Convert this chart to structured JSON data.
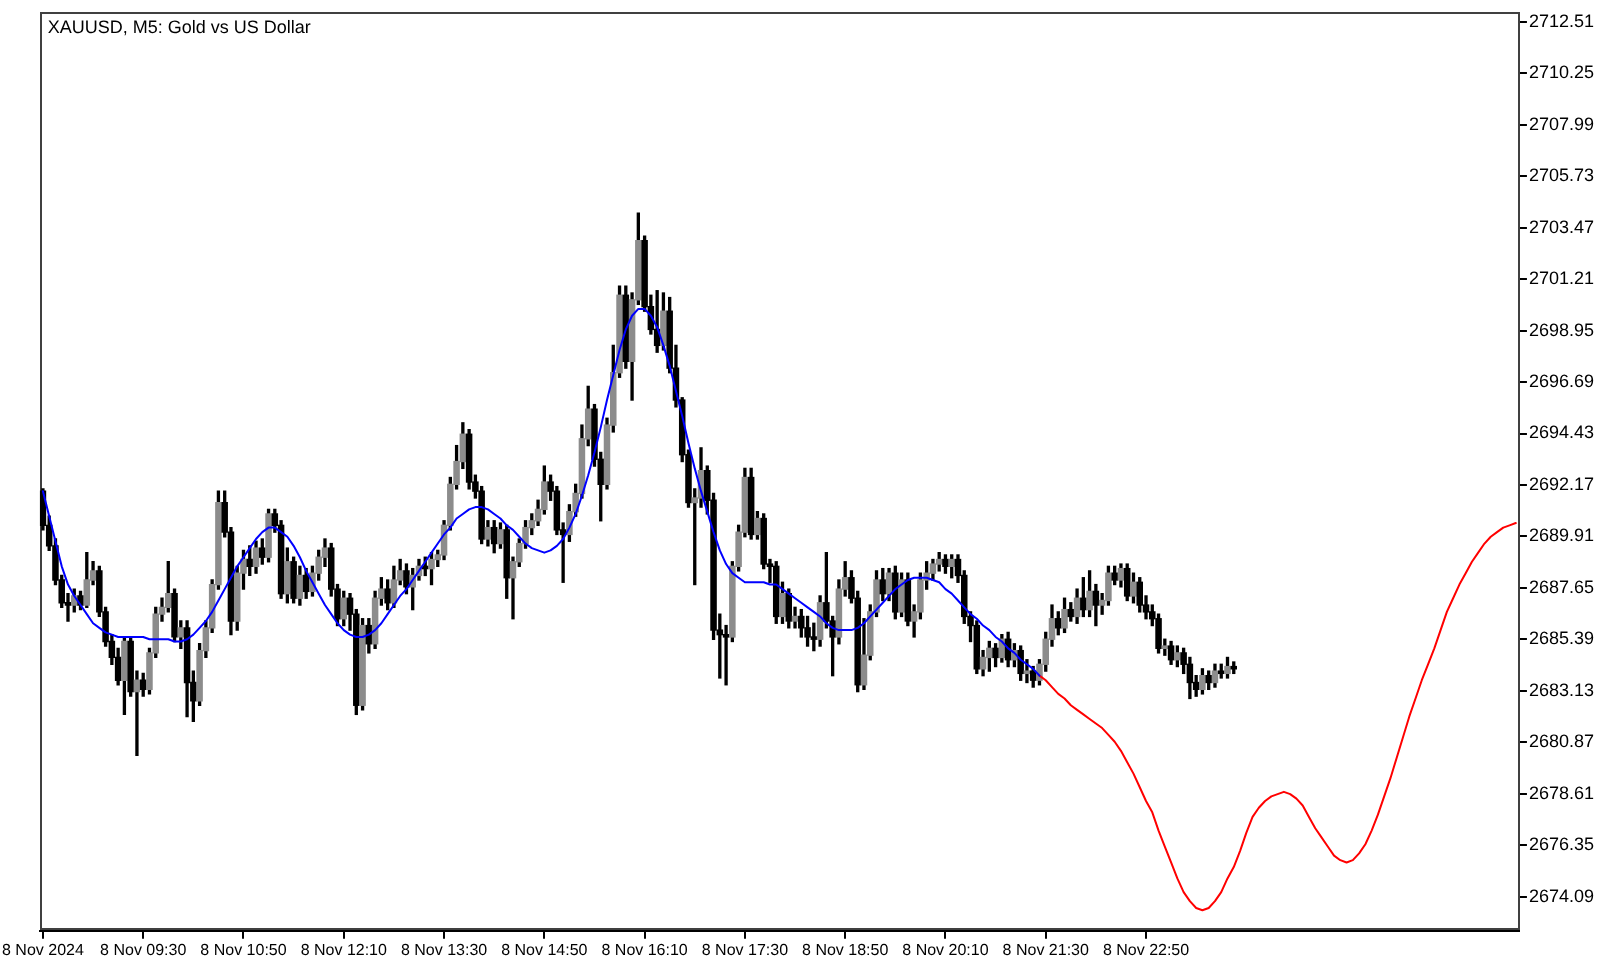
{
  "chart_data": {
    "type": "candlestick",
    "title": "XAUUSD, M5: Gold vs US Dollar",
    "color": "#000000",
    "marker": "none",
    "categories": [
      "8 Nov 2024",
      null,
      null,
      null,
      null,
      null,
      null,
      null,
      null,
      null,
      null,
      null,
      null,
      null,
      null,
      null,
      "8 Nov 09:30",
      null,
      null,
      null,
      null,
      null,
      null,
      null,
      null,
      null,
      null,
      null,
      null,
      null,
      null,
      null,
      "8 Nov 10:50",
      null,
      null,
      null,
      null,
      null,
      null,
      null,
      null,
      null,
      null,
      null,
      null,
      null,
      null,
      null,
      "8 Nov 12:10",
      null,
      null,
      null,
      null,
      null,
      null,
      null,
      null,
      null,
      null,
      null,
      null,
      null,
      null,
      null,
      "8 Nov 13:30",
      null,
      null,
      null,
      null,
      null,
      null,
      null,
      null,
      null,
      null,
      null,
      null,
      null,
      null,
      null,
      "8 Nov 14:50",
      null,
      null,
      null,
      null,
      null,
      null,
      null,
      null,
      null,
      null,
      null,
      null,
      null,
      null,
      null,
      "8 Nov 16:10",
      null,
      null,
      null,
      null,
      null,
      null,
      null,
      null,
      null,
      null,
      null,
      null,
      null,
      null,
      null,
      "8 Nov 17:30",
      null,
      null,
      null,
      null,
      null,
      null,
      null,
      null,
      null,
      null,
      null,
      null,
      null,
      null,
      null,
      "8 Nov 18:50",
      null,
      null,
      null,
      null,
      null,
      null,
      null,
      null,
      null,
      null,
      null,
      null,
      null,
      null,
      null,
      "8 Nov 20:10",
      null,
      null,
      null,
      null,
      null,
      null,
      null,
      null,
      null,
      null,
      null,
      null,
      null,
      null,
      null,
      "8 Nov 21:30",
      null,
      null,
      null,
      null,
      null,
      null,
      null,
      null,
      null,
      null,
      null,
      null,
      null,
      null,
      null,
      "8 Nov 22:50",
      null,
      null,
      null,
      null,
      null,
      null,
      null,
      null,
      null,
      null,
      null,
      null,
      null,
      null,
      null,
      null,
      null,
      null,
      null,
      null,
      null,
      null,
      null,
      null,
      null,
      null,
      null,
      null,
      null,
      null,
      null,
      null,
      null,
      null,
      null,
      null,
      null,
      null,
      null,
      null,
      null,
      null,
      null,
      null,
      null,
      null,
      null,
      null,
      null,
      null,
      null,
      null,
      null,
      null,
      null,
      null,
      null,
      null,
      null
    ],
    "ohlc": [
      [
        2691.9,
        2692.0,
        2690.2,
        2690.4
      ],
      [
        2690.4,
        2690.8,
        2689.3,
        2689.5
      ],
      [
        2689.5,
        2689.8,
        2687.8,
        2688.0
      ],
      [
        2688.0,
        2688.2,
        2686.8,
        2687.0
      ],
      [
        2687.0,
        2687.4,
        2686.2,
        2686.9
      ],
      [
        2686.9,
        2687.6,
        2686.6,
        2687.3
      ],
      [
        2687.3,
        2687.5,
        2686.7,
        2686.9
      ],
      [
        2686.9,
        2689.2,
        2686.8,
        2688.0
      ],
      [
        2688.0,
        2688.8,
        2687.8,
        2688.4
      ],
      [
        2688.4,
        2688.6,
        2686.4,
        2686.6
      ],
      [
        2686.6,
        2686.8,
        2685.1,
        2685.3
      ],
      [
        2685.3,
        2685.6,
        2684.3,
        2684.6
      ],
      [
        2684.6,
        2685.0,
        2683.4,
        2683.6
      ],
      [
        2683.6,
        2685.5,
        2682.1,
        2685.3
      ],
      [
        2685.3,
        2685.5,
        2682.9,
        2683.1
      ],
      [
        2683.1,
        2684.0,
        2680.3,
        2683.6
      ],
      [
        2683.6,
        2683.9,
        2682.9,
        2683.2
      ],
      [
        2683.2,
        2685.0,
        2683.0,
        2684.8
      ],
      [
        2684.8,
        2686.8,
        2684.6,
        2686.5
      ],
      [
        2686.5,
        2687.2,
        2686.2,
        2686.8
      ],
      [
        2686.8,
        2688.8,
        2686.6,
        2687.4
      ],
      [
        2687.4,
        2687.6,
        2685.3,
        2685.5
      ],
      [
        2685.5,
        2686.2,
        2685.0,
        2685.9
      ],
      [
        2685.9,
        2686.2,
        2682.0,
        2683.5
      ],
      [
        2683.5,
        2684.0,
        2681.8,
        2682.7
      ],
      [
        2682.7,
        2685.2,
        2682.5,
        2684.9
      ],
      [
        2684.9,
        2686.2,
        2684.6,
        2685.9
      ],
      [
        2685.9,
        2688.0,
        2685.7,
        2687.8
      ],
      [
        2687.8,
        2691.9,
        2687.6,
        2691.4
      ],
      [
        2691.4,
        2691.9,
        2689.9,
        2690.1
      ],
      [
        2690.1,
        2690.3,
        2685.6,
        2686.2
      ],
      [
        2686.2,
        2688.6,
        2685.8,
        2688.3
      ],
      [
        2688.3,
        2689.3,
        2687.6,
        2688.9
      ],
      [
        2688.9,
        2689.5,
        2688.2,
        2688.6
      ],
      [
        2688.6,
        2689.7,
        2688.3,
        2689.4
      ],
      [
        2689.4,
        2689.8,
        2688.7,
        2689.0
      ],
      [
        2689.0,
        2691.1,
        2688.8,
        2690.9
      ],
      [
        2690.9,
        2691.1,
        2690.1,
        2690.4
      ],
      [
        2690.4,
        2690.6,
        2687.2,
        2687.4
      ],
      [
        2687.4,
        2689.4,
        2687.0,
        2688.8
      ],
      [
        2688.8,
        2689.0,
        2687.0,
        2687.2
      ],
      [
        2687.2,
        2688.6,
        2686.9,
        2688.2
      ],
      [
        2688.2,
        2688.5,
        2687.2,
        2687.5
      ],
      [
        2687.5,
        2688.6,
        2687.3,
        2688.3
      ],
      [
        2688.3,
        2689.3,
        2688.0,
        2689.0
      ],
      [
        2689.0,
        2689.8,
        2688.6,
        2689.4
      ],
      [
        2689.4,
        2689.6,
        2687.3,
        2687.6
      ],
      [
        2687.6,
        2687.8,
        2686.0,
        2686.3
      ],
      [
        2686.3,
        2687.5,
        2686.0,
        2687.2
      ],
      [
        2687.2,
        2687.4,
        2685.8,
        2686.5
      ],
      [
        2686.5,
        2686.7,
        2682.1,
        2682.5
      ],
      [
        2682.5,
        2686.3,
        2682.3,
        2686.0
      ],
      [
        2686.0,
        2686.3,
        2684.8,
        2685.2
      ],
      [
        2685.2,
        2687.5,
        2685.0,
        2687.2
      ],
      [
        2687.2,
        2688.1,
        2686.9,
        2687.6
      ],
      [
        2687.6,
        2688.0,
        2686.7,
        2687.0
      ],
      [
        2687.0,
        2688.6,
        2686.8,
        2688.0
      ],
      [
        2688.0,
        2688.9,
        2687.8,
        2688.4
      ],
      [
        2688.4,
        2688.7,
        2687.4,
        2687.7
      ],
      [
        2687.7,
        2688.5,
        2686.7,
        2688.2
      ],
      [
        2688.2,
        2688.9,
        2688.0,
        2688.6
      ],
      [
        2688.6,
        2689.0,
        2688.2,
        2688.5
      ],
      [
        2688.5,
        2689.2,
        2687.8,
        2688.9
      ],
      [
        2688.9,
        2689.3,
        2688.6,
        2689.1
      ],
      [
        2689.1,
        2690.6,
        2688.9,
        2690.4
      ],
      [
        2690.4,
        2692.5,
        2690.2,
        2692.2
      ],
      [
        2692.2,
        2693.9,
        2692.0,
        2693.2
      ],
      [
        2693.2,
        2694.9,
        2692.9,
        2694.4
      ],
      [
        2694.4,
        2694.6,
        2692.0,
        2692.3
      ],
      [
        2692.3,
        2692.6,
        2691.6,
        2691.9
      ],
      [
        2691.9,
        2692.1,
        2689.6,
        2689.8
      ],
      [
        2689.8,
        2690.6,
        2689.5,
        2690.3
      ],
      [
        2690.3,
        2690.6,
        2689.2,
        2689.6
      ],
      [
        2689.6,
        2690.5,
        2689.4,
        2690.2
      ],
      [
        2690.2,
        2690.4,
        2687.2,
        2688.1
      ],
      [
        2688.1,
        2689.0,
        2686.3,
        2688.8
      ],
      [
        2688.8,
        2689.8,
        2688.6,
        2689.6
      ],
      [
        2689.6,
        2690.6,
        2689.4,
        2690.3
      ],
      [
        2690.3,
        2690.9,
        2690.0,
        2690.6
      ],
      [
        2690.6,
        2691.5,
        2690.4,
        2691.1
      ],
      [
        2691.1,
        2693.0,
        2690.9,
        2692.3
      ],
      [
        2692.3,
        2692.6,
        2691.5,
        2691.9
      ],
      [
        2691.9,
        2692.1,
        2690.0,
        2690.2
      ],
      [
        2690.2,
        2690.5,
        2687.9,
        2690.0
      ],
      [
        2690.0,
        2691.3,
        2689.7,
        2691.0
      ],
      [
        2691.0,
        2692.2,
        2690.8,
        2691.8
      ],
      [
        2691.8,
        2694.8,
        2691.6,
        2694.2
      ],
      [
        2694.2,
        2696.5,
        2693.9,
        2695.5
      ],
      [
        2695.5,
        2695.7,
        2693.0,
        2693.3
      ],
      [
        2693.3,
        2693.6,
        2690.6,
        2692.2
      ],
      [
        2692.2,
        2695.1,
        2692.0,
        2694.8
      ],
      [
        2694.8,
        2698.3,
        2694.5,
        2697.1
      ],
      [
        2697.1,
        2700.9,
        2696.9,
        2700.5
      ],
      [
        2700.5,
        2700.9,
        2697.3,
        2697.6
      ],
      [
        2697.6,
        2700.6,
        2695.9,
        2700.3
      ],
      [
        2700.3,
        2704.1,
        2700.1,
        2702.9
      ],
      [
        2702.9,
        2703.1,
        2699.8,
        2700.0
      ],
      [
        2700.0,
        2700.5,
        2698.8,
        2699.0
      ],
      [
        2699.0,
        2700.7,
        2698.0,
        2698.3
      ],
      [
        2698.3,
        2700.6,
        2698.1,
        2699.8
      ],
      [
        2699.8,
        2700.4,
        2697.1,
        2697.3
      ],
      [
        2697.3,
        2698.3,
        2695.6,
        2695.9
      ],
      [
        2695.9,
        2696.0,
        2693.2,
        2693.5
      ],
      [
        2693.5,
        2693.7,
        2691.2,
        2691.4
      ],
      [
        2691.4,
        2692.0,
        2687.8,
        2691.6
      ],
      [
        2691.6,
        2693.8,
        2691.2,
        2692.8
      ],
      [
        2692.8,
        2693.0,
        2690.9,
        2691.5
      ],
      [
        2691.5,
        2691.8,
        2685.4,
        2685.8
      ],
      [
        2685.8,
        2686.5,
        2683.7,
        2685.6
      ],
      [
        2685.6,
        2686.0,
        2683.4,
        2685.5
      ],
      [
        2685.5,
        2688.8,
        2685.3,
        2688.6
      ],
      [
        2688.6,
        2690.4,
        2688.4,
        2690.1
      ],
      [
        2690.1,
        2692.9,
        2689.9,
        2692.5
      ],
      [
        2692.5,
        2692.9,
        2689.8,
        2690.0
      ],
      [
        2690.0,
        2691.0,
        2689.8,
        2690.7
      ],
      [
        2690.7,
        2690.9,
        2688.5,
        2688.7
      ],
      [
        2688.7,
        2688.9,
        2687.9,
        2688.6
      ],
      [
        2688.6,
        2688.8,
        2686.1,
        2686.4
      ],
      [
        2686.4,
        2687.9,
        2686.1,
        2687.4
      ],
      [
        2687.4,
        2687.6,
        2685.9,
        2686.2
      ],
      [
        2686.2,
        2686.8,
        2685.9,
        2686.4
      ],
      [
        2686.4,
        2686.7,
        2685.5,
        2685.9
      ],
      [
        2685.9,
        2686.4,
        2685.1,
        2685.5
      ],
      [
        2685.5,
        2686.1,
        2684.9,
        2685.4
      ],
      [
        2685.4,
        2687.3,
        2685.1,
        2687.0
      ],
      [
        2687.0,
        2689.2,
        2685.9,
        2686.2
      ],
      [
        2686.2,
        2686.4,
        2683.8,
        2685.5
      ],
      [
        2685.5,
        2688.0,
        2685.2,
        2687.6
      ],
      [
        2687.6,
        2688.8,
        2687.3,
        2688.1
      ],
      [
        2688.1,
        2688.4,
        2687.0,
        2687.2
      ],
      [
        2687.2,
        2687.5,
        2683.1,
        2683.4
      ],
      [
        2683.4,
        2686.3,
        2683.2,
        2684.7
      ],
      [
        2684.7,
        2686.9,
        2684.5,
        2686.6
      ],
      [
        2686.6,
        2688.4,
        2686.4,
        2688.0
      ],
      [
        2688.0,
        2688.5,
        2687.1,
        2687.4
      ],
      [
        2687.4,
        2688.5,
        2687.1,
        2688.3
      ],
      [
        2688.3,
        2688.6,
        2686.3,
        2686.6
      ],
      [
        2686.6,
        2688.3,
        2686.4,
        2688.0
      ],
      [
        2688.0,
        2688.3,
        2686.0,
        2686.2
      ],
      [
        2686.2,
        2686.9,
        2685.5,
        2686.6
      ],
      [
        2686.6,
        2688.3,
        2686.3,
        2688.0
      ],
      [
        2688.0,
        2688.8,
        2687.6,
        2688.3
      ],
      [
        2688.3,
        2688.9,
        2688.0,
        2688.7
      ],
      [
        2688.7,
        2689.2,
        2688.4,
        2688.9
      ],
      [
        2688.9,
        2689.1,
        2688.3,
        2688.6
      ],
      [
        2688.6,
        2689.1,
        2688.1,
        2688.9
      ],
      [
        2688.9,
        2689.1,
        2687.9,
        2688.2
      ],
      [
        2688.2,
        2688.4,
        2686.1,
        2686.4
      ],
      [
        2686.4,
        2686.6,
        2685.3,
        2686.0
      ],
      [
        2686.0,
        2686.2,
        2683.9,
        2684.1
      ],
      [
        2684.1,
        2684.9,
        2683.8,
        2684.6
      ],
      [
        2684.6,
        2685.3,
        2684.0,
        2685.0
      ],
      [
        2685.0,
        2685.2,
        2684.2,
        2684.6
      ],
      [
        2684.6,
        2685.6,
        2684.4,
        2685.4
      ],
      [
        2685.4,
        2685.7,
        2684.2,
        2684.5
      ],
      [
        2684.5,
        2685.2,
        2684.2,
        2684.9
      ],
      [
        2684.9,
        2685.1,
        2683.6,
        2683.9
      ],
      [
        2683.9,
        2684.5,
        2683.5,
        2684.0
      ],
      [
        2684.0,
        2684.2,
        2683.3,
        2683.6
      ],
      [
        2683.6,
        2684.5,
        2683.4,
        2684.3
      ],
      [
        2684.3,
        2685.7,
        2684.0,
        2685.4
      ],
      [
        2685.4,
        2686.9,
        2685.1,
        2686.3
      ],
      [
        2686.3,
        2686.6,
        2685.6,
        2685.9
      ],
      [
        2685.9,
        2687.2,
        2685.7,
        2686.7
      ],
      [
        2686.7,
        2687.0,
        2686.2,
        2686.4
      ],
      [
        2686.4,
        2687.6,
        2686.1,
        2687.2
      ],
      [
        2687.2,
        2688.1,
        2686.4,
        2686.7
      ],
      [
        2686.7,
        2688.4,
        2686.4,
        2687.5
      ],
      [
        2687.5,
        2687.8,
        2686.0,
        2686.9
      ],
      [
        2686.9,
        2687.4,
        2686.5,
        2687.1
      ],
      [
        2687.1,
        2688.6,
        2686.9,
        2688.3
      ],
      [
        2688.3,
        2688.6,
        2687.8,
        2688.0
      ],
      [
        2688.0,
        2688.7,
        2687.7,
        2688.5
      ],
      [
        2688.5,
        2688.7,
        2687.1,
        2687.3
      ],
      [
        2687.3,
        2688.3,
        2687.0,
        2687.9
      ],
      [
        2687.9,
        2688.1,
        2686.6,
        2686.9
      ],
      [
        2686.9,
        2687.3,
        2686.3,
        2686.6
      ],
      [
        2686.6,
        2686.9,
        2686.0,
        2686.3
      ],
      [
        2686.3,
        2686.5,
        2684.8,
        2685.0
      ],
      [
        2685.0,
        2685.4,
        2684.7,
        2685.1
      ],
      [
        2685.1,
        2685.3,
        2684.3,
        2684.5
      ],
      [
        2684.5,
        2685.1,
        2684.2,
        2684.8
      ],
      [
        2684.8,
        2685.0,
        2683.9,
        2684.3
      ],
      [
        2684.3,
        2684.6,
        2682.8,
        2683.5
      ],
      [
        2683.5,
        2683.8,
        2682.9,
        2683.2
      ],
      [
        2683.2,
        2684.1,
        2683.0,
        2683.8
      ],
      [
        2683.8,
        2684.0,
        2683.2,
        2683.5
      ],
      [
        2683.5,
        2684.3,
        2683.3,
        2684.0
      ],
      [
        2684.0,
        2684.3,
        2683.7,
        2683.9
      ],
      [
        2683.9,
        2684.6,
        2683.7,
        2684.2
      ],
      [
        2684.2,
        2684.4,
        2683.9,
        2684.1
      ],
      null,
      null,
      null,
      null,
      null,
      null,
      null,
      null,
      null,
      null,
      null,
      null,
      null,
      null,
      null,
      null,
      null,
      null,
      null,
      null,
      null,
      null,
      null,
      null,
      null,
      null,
      null,
      null,
      null,
      null,
      null,
      null,
      null,
      null,
      null,
      null,
      null,
      null,
      null,
      null,
      null,
      null,
      null,
      null,
      null
    ],
    "colors": [
      "#000000",
      "#000000",
      "#000000",
      "#000000",
      "#000000",
      "#8c8c8c",
      "#000000",
      "#8c8c8c",
      "#8c8c8c",
      "#000000",
      "#000000",
      "#000000",
      "#000000",
      "#8c8c8c",
      "#000000",
      "#8c8c8c",
      "#000000",
      "#8c8c8c",
      "#8c8c8c",
      "#8c8c8c",
      "#8c8c8c",
      "#000000",
      "#8c8c8c",
      "#000000",
      "#000000",
      "#8c8c8c",
      "#8c8c8c",
      "#8c8c8c",
      "#8c8c8c",
      "#000000",
      "#000000",
      "#8c8c8c",
      "#8c8c8c",
      "#000000",
      "#8c8c8c",
      "#000000",
      "#8c8c8c",
      "#000000",
      "#000000",
      "#8c8c8c",
      "#000000",
      "#8c8c8c",
      "#000000",
      "#8c8c8c",
      "#8c8c8c",
      "#8c8c8c",
      "#000000",
      "#000000",
      "#8c8c8c",
      "#000000",
      "#000000",
      "#8c8c8c",
      "#000000",
      "#8c8c8c",
      "#8c8c8c",
      "#000000",
      "#8c8c8c",
      "#8c8c8c",
      "#000000",
      "#8c8c8c",
      "#8c8c8c",
      "#000000",
      "#8c8c8c",
      "#8c8c8c",
      "#8c8c8c",
      "#8c8c8c",
      "#8c8c8c",
      "#8c8c8c",
      "#000000",
      "#000000",
      "#000000",
      "#8c8c8c",
      "#000000",
      "#8c8c8c",
      "#000000",
      "#8c8c8c",
      "#8c8c8c",
      "#8c8c8c",
      "#8c8c8c",
      "#8c8c8c",
      "#8c8c8c",
      "#000000",
      "#000000",
      "#000000",
      "#8c8c8c",
      "#8c8c8c",
      "#8c8c8c",
      "#8c8c8c",
      "#000000",
      "#000000",
      "#8c8c8c",
      "#8c8c8c",
      "#8c8c8c",
      "#000000",
      "#8c8c8c",
      "#8c8c8c",
      "#000000",
      "#000000",
      "#000000",
      "#8c8c8c",
      "#000000",
      "#000000",
      "#000000",
      "#000000",
      "#8c8c8c",
      "#8c8c8c",
      "#000000",
      "#000000",
      "#000000",
      "#000000",
      "#8c8c8c",
      "#8c8c8c",
      "#8c8c8c",
      "#000000",
      "#8c8c8c",
      "#000000",
      "#000000",
      "#000000",
      "#8c8c8c",
      "#000000",
      "#8c8c8c",
      "#000000",
      "#000000",
      "#000000",
      "#8c8c8c",
      "#000000",
      "#000000",
      "#8c8c8c",
      "#8c8c8c",
      "#000000",
      "#000000",
      "#8c8c8c",
      "#8c8c8c",
      "#8c8c8c",
      "#000000",
      "#8c8c8c",
      "#000000",
      "#8c8c8c",
      "#000000",
      "#8c8c8c",
      "#8c8c8c",
      "#8c8c8c",
      "#8c8c8c",
      "#8c8c8c",
      "#000000",
      "#8c8c8c",
      "#000000",
      "#000000",
      "#000000",
      "#000000",
      "#8c8c8c",
      "#8c8c8c",
      "#000000",
      "#8c8c8c",
      "#000000",
      "#8c8c8c",
      "#000000",
      "#8c8c8c",
      "#000000",
      "#8c8c8c",
      "#8c8c8c",
      "#8c8c8c",
      "#000000",
      "#8c8c8c",
      "#000000",
      "#8c8c8c",
      "#000000",
      "#8c8c8c",
      "#000000",
      "#8c8c8c",
      "#8c8c8c",
      "#000000",
      "#8c8c8c",
      "#000000",
      "#8c8c8c",
      "#000000",
      "#000000",
      "#000000",
      "#000000",
      "#8c8c8c",
      "#000000",
      "#8c8c8c",
      "#000000",
      "#000000",
      "#000000",
      "#8c8c8c",
      "#000000",
      "#8c8c8c",
      "#000000",
      "#8c8c8c",
      "#000000",
      null,
      null,
      null,
      null,
      null,
      null,
      null,
      null,
      null,
      null,
      null,
      null,
      null,
      null,
      null,
      null,
      null,
      null,
      null,
      null,
      null,
      null,
      null,
      null,
      null,
      null,
      null,
      null,
      null,
      null,
      null,
      null,
      null,
      null,
      null,
      null,
      null,
      null,
      null,
      null,
      null,
      null,
      null,
      null,
      null
    ],
    "series": [
      {
        "type": "line",
        "color": "#0000ff",
        "values": [
          2691.9,
          2690.8,
          2689.7,
          2688.6,
          2687.8,
          2687.3,
          2686.9,
          2686.5,
          2686.1,
          2685.9,
          2685.7,
          2685.6,
          2685.5,
          2685.5,
          2685.5,
          2685.5,
          2685.5,
          2685.4,
          2685.4,
          2685.4,
          2685.4,
          2685.3,
          2685.3,
          2685.4,
          2685.6,
          2685.9,
          2686.2,
          2686.6,
          2687.1,
          2687.6,
          2688.1,
          2688.6,
          2689.0,
          2689.4,
          2689.8,
          2690.1,
          2690.3,
          2690.3,
          2690.1,
          2689.9,
          2689.5,
          2689.0,
          2688.4,
          2687.9,
          2687.4,
          2686.9,
          2686.5,
          2686.1,
          2685.8,
          2685.6,
          2685.5,
          2685.5,
          2685.6,
          2685.8,
          2686.1,
          2686.5,
          2686.9,
          2687.3,
          2687.6,
          2688.0,
          2688.4,
          2688.8,
          2689.2,
          2689.6,
          2690.0,
          2690.3,
          2690.7,
          2690.9,
          2691.1,
          2691.2,
          2691.2,
          2691.1,
          2690.9,
          2690.7,
          2690.4,
          2690.2,
          2689.9,
          2689.6,
          2689.4,
          2689.3,
          2689.2,
          2689.3,
          2689.5,
          2689.8,
          2690.3,
          2690.9,
          2691.7,
          2692.6,
          2693.6,
          2694.7,
          2695.9,
          2697.0,
          2698.1,
          2699.0,
          2699.6,
          2699.9,
          2699.9,
          2699.6,
          2699.1,
          2698.3,
          2697.4,
          2696.3,
          2695.2,
          2694.0,
          2692.9,
          2691.9,
          2691.0,
          2690.1,
          2689.3,
          2688.7,
          2688.3,
          2688.1,
          2687.9,
          2687.9,
          2687.9,
          2687.9,
          2687.8,
          2687.8,
          2687.6,
          2687.4,
          2687.2,
          2687.0,
          2686.8,
          2686.6,
          2686.4,
          2686.1,
          2685.9,
          2685.8,
          2685.8,
          2685.8,
          2685.9,
          2686.1,
          2686.4,
          2686.7,
          2687.0,
          2687.3,
          2687.6,
          2687.8,
          2688.0,
          2688.1,
          2688.1,
          2688.1,
          2688.0,
          2687.9,
          2687.6,
          2687.4,
          2687.1,
          2686.8,
          2686.5,
          2686.3,
          2686.0,
          2685.8,
          2685.5,
          2685.3,
          2685.0,
          2684.8,
          2684.5,
          2684.3,
          2684.1,
          2683.8,
          null,
          null,
          null,
          null,
          null,
          null,
          null,
          null,
          null,
          null,
          null,
          null,
          null,
          null,
          null,
          null,
          null,
          null,
          null,
          null,
          null,
          null,
          null,
          null,
          null,
          null,
          null,
          null,
          null,
          null,
          null,
          null,
          null,
          null,
          null,
          null,
          null,
          null,
          null,
          null,
          null,
          null,
          null,
          null,
          null,
          null,
          null,
          null,
          null,
          null,
          null,
          null,
          null,
          null,
          null,
          null,
          null,
          null,
          null,
          null,
          null,
          null,
          null,
          null,
          null,
          null,
          null,
          null,
          null,
          null,
          null,
          null,
          null,
          null,
          null,
          null
        ]
      },
      {
        "type": "line",
        "color": "#ff0000",
        "values": [
          null,
          null,
          null,
          null,
          null,
          null,
          null,
          null,
          null,
          null,
          null,
          null,
          null,
          null,
          null,
          null,
          null,
          null,
          null,
          null,
          null,
          null,
          null,
          null,
          null,
          null,
          null,
          null,
          null,
          null,
          null,
          null,
          null,
          null,
          null,
          null,
          null,
          null,
          null,
          null,
          null,
          null,
          null,
          null,
          null,
          null,
          null,
          null,
          null,
          null,
          null,
          null,
          null,
          null,
          null,
          null,
          null,
          null,
          null,
          null,
          null,
          null,
          null,
          null,
          null,
          null,
          null,
          null,
          null,
          null,
          null,
          null,
          null,
          null,
          null,
          null,
          null,
          null,
          null,
          null,
          null,
          null,
          null,
          null,
          null,
          null,
          null,
          null,
          null,
          null,
          null,
          null,
          null,
          null,
          null,
          null,
          null,
          null,
          null,
          null,
          null,
          null,
          null,
          null,
          null,
          null,
          null,
          null,
          null,
          null,
          null,
          null,
          null,
          null,
          null,
          null,
          null,
          null,
          null,
          null,
          null,
          null,
          null,
          null,
          null,
          null,
          null,
          null,
          null,
          null,
          null,
          null,
          null,
          null,
          null,
          null,
          null,
          null,
          null,
          null,
          null,
          null,
          null,
          null,
          null,
          null,
          null,
          null,
          null,
          null,
          null,
          null,
          null,
          null,
          null,
          null,
          null,
          null,
          null,
          2683.8,
          2683.6,
          2683.3,
          2683.0,
          2682.8,
          2682.5,
          2682.3,
          2682.1,
          2681.9,
          2681.7,
          2681.5,
          2681.2,
          2680.9,
          2680.5,
          2680.0,
          2679.5,
          2678.9,
          2678.3,
          2677.8,
          2677.0,
          2676.3,
          2675.6,
          2674.9,
          2674.3,
          2673.9,
          2673.6,
          2673.5,
          2673.6,
          2673.9,
          2674.3,
          2674.9,
          2675.4,
          2676.1,
          2676.9,
          2677.6,
          2678.0,
          2678.3,
          2678.5,
          2678.6,
          2678.7,
          2678.6,
          2678.4,
          2678.1,
          2677.6,
          2677.1,
          2676.7,
          2676.3,
          2675.9,
          2675.7,
          2675.6,
          2675.7,
          2676.0,
          2676.4,
          2677.0,
          2677.7,
          2678.5,
          2679.3,
          2680.2,
          2681.1,
          2682.0,
          2682.8,
          2683.6,
          2684.3,
          2685.0,
          2685.8,
          2686.6,
          2687.2,
          2687.8,
          2688.3,
          2688.8,
          2689.2,
          2689.6,
          2689.9,
          2690.1,
          2690.3,
          2690.4,
          2690.5
        ]
      }
    ],
    "ylim": [
      2672.6,
      2712.9
    ],
    "yticks": [
      2674.09,
      2676.35,
      2678.61,
      2680.87,
      2683.13,
      2685.39,
      2687.65,
      2689.91,
      2692.17,
      2694.43,
      2696.69,
      2698.95,
      2701.21,
      2703.47,
      2705.73,
      2707.99,
      2710.25,
      2712.51
    ]
  }
}
